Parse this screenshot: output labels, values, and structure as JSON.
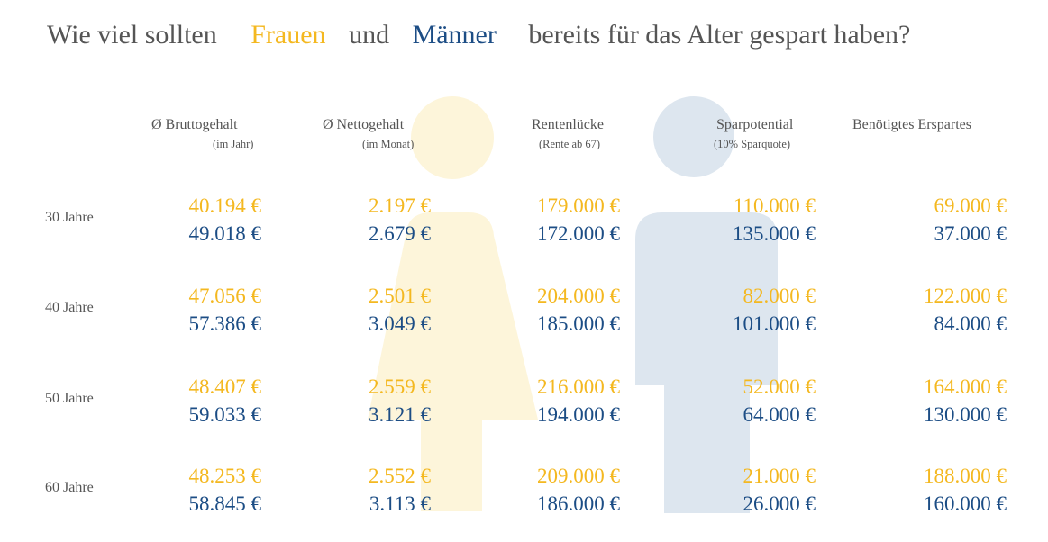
{
  "title": {
    "part1": "Wie viel sollten",
    "women": "Frauen",
    "and": "und",
    "men": "Männer",
    "part2": "bereits für das Alter gespart haben?"
  },
  "colors": {
    "women": "#f4b820",
    "men": "#1c4d85",
    "women_figure": "#fdf5da",
    "men_figure": "#dde6ef"
  },
  "icons": [
    "female-figure-icon",
    "male-figure-icon"
  ],
  "chart_data": {
    "type": "table",
    "title": "Wie viel sollten Frauen und Männer bereits für das Alter gespart haben?",
    "columns": [
      {
        "label": "Ø Bruttogehalt",
        "sub": "(im Jahr)"
      },
      {
        "label": "Ø Nettogehalt",
        "sub": "(im Monat)"
      },
      {
        "label": "Rentenlücke",
        "sub": "(Rente ab 67)"
      },
      {
        "label": "Sparpotential",
        "sub": "(10% Sparquote)"
      },
      {
        "label": "Benötigtes Erspartes",
        "sub": ""
      }
    ],
    "rows": [
      {
        "age": "30 Jahre",
        "women": [
          "40.194 €",
          "2.197 €",
          "179.000 €",
          "110.000 €",
          "69.000 €"
        ],
        "men": [
          "49.018 €",
          "2.679 €",
          "172.000 €",
          "135.000 €",
          "37.000 €"
        ]
      },
      {
        "age": "40 Jahre",
        "women": [
          "47.056 €",
          "2.501 €",
          "204.000 €",
          "82.000 €",
          "122.000 €"
        ],
        "men": [
          "57.386 €",
          "3.049 €",
          "185.000 €",
          "101.000 €",
          "84.000 €"
        ]
      },
      {
        "age": "50 Jahre",
        "women": [
          "48.407 €",
          "2.559 €",
          "216.000 €",
          "52.000 €",
          "164.000 €"
        ],
        "men": [
          "59.033 €",
          "3.121 €",
          "194.000 €",
          "64.000 €",
          "130.000 €"
        ]
      },
      {
        "age": "60 Jahre",
        "women": [
          "48.253 €",
          "2.552 €",
          "209.000 €",
          "21.000 €",
          "188.000 €"
        ],
        "men": [
          "58.845 €",
          "3.113 €",
          "186.000 €",
          "26.000 €",
          "160.000 €"
        ]
      }
    ]
  }
}
